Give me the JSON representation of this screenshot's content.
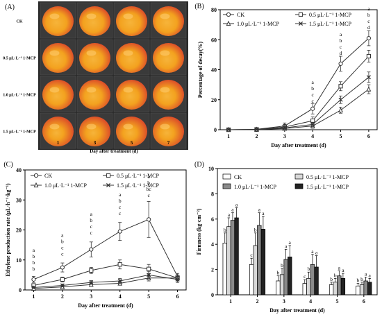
{
  "chart_data": [
    {
      "panel": "(A)",
      "type": "table",
      "rows": [
        "CK",
        "0.5 μL·L⁻¹ 1-MCP",
        "1.0 μL·L⁻¹ 1-MCP",
        "1.5 μL·L⁻¹ 1-MCP"
      ],
      "columns": [
        "1",
        "3",
        "5",
        "7"
      ],
      "xlabel": "Day after treatment (d)",
      "colors": {
        "bg": "#2a2a2a",
        "fruit_yellow": "#f3a21f",
        "fruit_red": "#d9432a"
      }
    },
    {
      "panel": "(B)",
      "type": "line",
      "x": [
        1,
        2,
        3,
        4,
        5,
        6
      ],
      "xlabel": "Day after treatment (d)",
      "ylabel": "Percentage of decay(%)",
      "ylim": [
        0,
        80
      ],
      "yticks": [
        0,
        20,
        40,
        60,
        80
      ],
      "legend_position": "top",
      "series": [
        {
          "name": "CK",
          "marker": "circle",
          "values": [
            0,
            0.3,
            2.5,
            14,
            44,
            61
          ],
          "errors": [
            0.5,
            0.8,
            2,
            3.5,
            5,
            5
          ]
        },
        {
          "name": "0.5 μL·L⁻¹ 1-MCP",
          "marker": "square",
          "values": [
            0,
            0.2,
            1.8,
            6,
            29,
            49
          ],
          "errors": [
            0.5,
            0.6,
            1.5,
            2.5,
            3,
            4
          ]
        },
        {
          "name": "1.0 μL·L⁻¹ 1-MCP",
          "marker": "triangle",
          "values": [
            0,
            0.1,
            0.8,
            2.5,
            13,
            27
          ],
          "errors": [
            0.4,
            0.5,
            1,
            1.5,
            2,
            3
          ]
        },
        {
          "name": "1.5 μL·L⁻¹ 1-MCP",
          "marker": "x",
          "values": [
            0,
            0.1,
            1.2,
            3.5,
            20,
            35
          ],
          "errors": [
            0.4,
            0.5,
            1,
            1.5,
            2.5,
            3.5
          ]
        }
      ],
      "annotations": [
        {
          "x": 4,
          "y": 18,
          "letters": [
            "a",
            "b",
            "c",
            "c"
          ]
        },
        {
          "x": 5,
          "y": 50,
          "letters": [
            "a",
            "b",
            "c",
            "d"
          ]
        },
        {
          "x": 6,
          "y": 67,
          "letters": [
            "a",
            "b",
            "c",
            "d"
          ]
        }
      ],
      "colors": {
        "line": "#333333"
      }
    },
    {
      "panel": "(C)",
      "type": "line",
      "x": [
        1,
        2,
        3,
        4,
        5,
        6
      ],
      "xlabel": "Day after treatment (d)",
      "ylabel": "Ethylene production rate (μL·h⁻¹·kg⁻¹)",
      "ylim": [
        0,
        40
      ],
      "yticks": [
        0,
        10,
        20,
        30,
        40
      ],
      "legend_position": "top",
      "series": [
        {
          "name": "CK",
          "marker": "circle",
          "values": [
            3.5,
            7.5,
            13.5,
            19.5,
            23.5,
            4.5
          ],
          "errors": [
            1,
            1.5,
            2.5,
            3,
            6,
            1
          ]
        },
        {
          "name": "0.5 μL·L⁻¹ 1-MCP",
          "marker": "square",
          "values": [
            1.5,
            3.5,
            6.5,
            8.5,
            7,
            4
          ],
          "errors": [
            0.5,
            0.8,
            1,
            1.5,
            1.5,
            1
          ]
        },
        {
          "name": "1.0 μL·L⁻¹ 1-MCP",
          "marker": "triangle",
          "values": [
            0.5,
            1,
            1.8,
            2.2,
            4,
            4
          ],
          "errors": [
            0.3,
            0.4,
            0.5,
            0.6,
            1,
            1
          ]
        },
        {
          "name": "1.5 μL·L⁻¹ 1-MCP",
          "marker": "x",
          "values": [
            0.8,
            1.5,
            2.5,
            3,
            5,
            3.5
          ],
          "errors": [
            0.3,
            0.5,
            0.6,
            0.8,
            1.2,
            1
          ]
        }
      ],
      "annotations": [
        {
          "x": 1,
          "y": 6.5,
          "letters": [
            "a",
            "b",
            "b",
            "b"
          ]
        },
        {
          "x": 2,
          "y": 11.5,
          "letters": [
            "a",
            "b",
            "c",
            "c"
          ]
        },
        {
          "x": 3,
          "y": 18.5,
          "letters": [
            "a",
            "b",
            "c",
            "c"
          ]
        },
        {
          "x": 4,
          "y": 25,
          "letters": [
            "a",
            "b",
            "c",
            "c"
          ]
        },
        {
          "x": 5,
          "y": 31,
          "letters": [
            "a",
            "b",
            "bc",
            "c"
          ]
        }
      ],
      "colors": {
        "line": "#333333"
      }
    },
    {
      "panel": "(D)",
      "type": "bar",
      "categories": [
        "1",
        "2",
        "3",
        "4",
        "5",
        "6"
      ],
      "xlabel": "Day after treatment (d)",
      "ylabel": "Firmness (kg·cm⁻²)",
      "ylim": [
        0,
        10
      ],
      "yticks": [
        0,
        2,
        4,
        6,
        8,
        10
      ],
      "legend_position": "top",
      "series": [
        {
          "name": "CK",
          "color": "#ffffff",
          "values": [
            4.1,
            2.4,
            1.1,
            0.9,
            0.8,
            0.7
          ],
          "errors": [
            0.8,
            0.5,
            0.4,
            0.3,
            0.2,
            0.2
          ],
          "letters": [
            "b",
            "c",
            "b",
            "c",
            "b",
            "b"
          ]
        },
        {
          "name": "0.5 μL·L⁻¹ 1-MCP",
          "color": "#d8d8d8",
          "values": [
            5.4,
            3.9,
            1.6,
            1.3,
            1.0,
            0.8
          ],
          "errors": [
            0.7,
            1.0,
            0.5,
            0.5,
            0.3,
            0.2
          ],
          "letters": [
            "a",
            "b",
            "b",
            "b",
            "b",
            "b"
          ]
        },
        {
          "name": "1.0 μL·L⁻¹ 1-MCP",
          "color": "#8a8a8a",
          "values": [
            5.9,
            5.5,
            2.8,
            2.4,
            1.5,
            1.1
          ],
          "errors": [
            0.6,
            1.0,
            0.8,
            0.8,
            0.4,
            0.3
          ],
          "letters": [
            "a",
            "a",
            "a",
            "a",
            "a",
            "a"
          ]
        },
        {
          "name": "1.5 μL·L⁻¹ 1-MCP",
          "color": "#222222",
          "values": [
            6.1,
            5.2,
            3.0,
            2.2,
            1.3,
            1.0
          ],
          "errors": [
            0.8,
            1.0,
            0.9,
            0.9,
            0.4,
            0.3
          ],
          "letters": [
            "a",
            "a",
            "a",
            "a",
            "a",
            "a"
          ]
        }
      ]
    }
  ]
}
